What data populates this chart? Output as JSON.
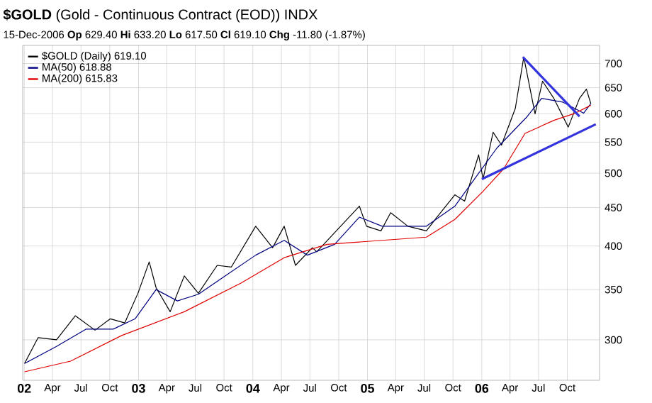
{
  "chart_data": {
    "type": "line",
    "title": "**$GOLD** (Gold - Continuous Contract (EOD)) INDX",
    "subtitle": "15-Dec-2006   **Op** 629.40  **Hi** 633.20  **Lo** 617.50  **Cl** 619.10  **Chg** -11.80 (-1.87%)",
    "series": [
      {
        "name": "$GOLD (Daily) 619.10",
        "color": "#000000",
        "x": [
          "2002-01-02",
          "2002-02-14",
          "2002-04-14",
          "2002-06-13",
          "2002-08-15",
          "2002-10-03",
          "2002-11-18",
          "2002-12-30",
          "2003-02-04",
          "2003-02-26",
          "2003-04-12",
          "2003-05-27",
          "2003-07-11",
          "2003-09-09",
          "2003-10-24",
          "2004-01-10",
          "2004-03-04",
          "2004-04-10",
          "2004-05-16",
          "2004-07-09",
          "2004-07-23",
          "2004-12-06",
          "2004-12-29",
          "2005-02-13",
          "2005-03-16",
          "2005-05-10",
          "2005-07-08",
          "2005-08-13",
          "2005-10-07",
          "2005-11-07",
          "2005-12-22",
          "2006-01-05",
          "2006-02-06",
          "2006-03-05",
          "2006-04-18",
          "2006-05-15",
          "2006-06-20",
          "2006-07-14",
          "2006-08-19",
          "2006-10-04",
          "2006-11-09",
          "2006-12-01",
          "2006-12-15"
        ],
        "values": [
          279,
          302,
          300,
          323,
          309,
          320,
          316,
          346,
          381,
          352,
          327,
          365,
          346,
          377,
          375,
          425,
          398,
          425,
          377,
          398,
          393,
          452,
          425,
          419,
          443,
          425,
          419,
          438,
          468,
          459,
          529,
          491,
          567,
          545,
          610,
          714,
          600,
          663,
          629,
          576,
          629,
          647,
          619.1
        ]
      },
      {
        "name": "MA(50) 618.88",
        "color": "#000080",
        "x": [
          "2002-01-02",
          "2002-04-14",
          "2002-07-17",
          "2002-10-12",
          "2002-12-21",
          "2003-02-26",
          "2003-05-05",
          "2003-07-11",
          "2003-10-05",
          "2004-01-10",
          "2004-04-10",
          "2004-06-23",
          "2004-09-18",
          "2004-12-06",
          "2005-02-17",
          "2005-07-08",
          "2005-10-07",
          "2005-12-13",
          "2006-02-18",
          "2006-05-26",
          "2006-07-11",
          "2006-09-16",
          "2006-11-22",
          "2006-12-15"
        ],
        "values": [
          279,
          294,
          310,
          310,
          320,
          350,
          338,
          345,
          365,
          389,
          407,
          389,
          402,
          437,
          425,
          425,
          452,
          494,
          540,
          595,
          629,
          622,
          601,
          618.88
        ]
      },
      {
        "name": "MA(200) 615.83",
        "color": "#e00000",
        "x": [
          "2002-01-02",
          "2002-05-29",
          "2002-11-08",
          "2003-05-27",
          "2003-11-24",
          "2004-04-10",
          "2004-08-25",
          "2005-02-17",
          "2005-07-08",
          "2005-10-07",
          "2006-01-05",
          "2006-03-12",
          "2006-05-19",
          "2006-08-19",
          "2006-10-26",
          "2006-12-15"
        ],
        "values": [
          272,
          281,
          304,
          327,
          357,
          386,
          402,
          407,
          411,
          434,
          473,
          507,
          565,
          588,
          601,
          615.83
        ]
      },
      {
        "color": "#3333dd",
        "x": [
          "2006-05-12",
          "2006-11-09"
        ],
        "values": [
          714,
          595
        ]
      },
      {
        "color": "#3333dd",
        "x": [
          "2006-01-01",
          "2006-12-31"
        ],
        "values": [
          491,
          581
        ]
      }
    ],
    "xlim": [
      "2001-12-27",
      "2007-01-12"
    ],
    "xticks": [
      {
        "value": "2002-01-01",
        "label": "02"
      },
      {
        "value": "2002-04-01",
        "label": "Apr"
      },
      {
        "value": "2002-07-01",
        "label": "Jul"
      },
      {
        "value": "2002-10-01",
        "label": "Oct"
      },
      {
        "value": "2003-01-01",
        "label": "03"
      },
      {
        "value": "2003-04-01",
        "label": "Apr"
      },
      {
        "value": "2003-07-01",
        "label": "Jul"
      },
      {
        "value": "2003-10-01",
        "label": "Oct"
      },
      {
        "value": "2004-01-01",
        "label": "04"
      },
      {
        "value": "2004-04-01",
        "label": "Apr"
      },
      {
        "value": "2004-07-01",
        "label": "Jul"
      },
      {
        "value": "2004-10-01",
        "label": "Oct"
      },
      {
        "value": "2005-01-01",
        "label": "05"
      },
      {
        "value": "2005-04-01",
        "label": "Apr"
      },
      {
        "value": "2005-07-01",
        "label": "Jul"
      },
      {
        "value": "2005-10-01",
        "label": "Oct"
      },
      {
        "value": "2006-01-01",
        "label": "06"
      },
      {
        "value": "2006-04-01",
        "label": "Apr"
      },
      {
        "value": "2006-07-01",
        "label": "Jul"
      },
      {
        "value": "2006-10-01",
        "label": "Oct"
      }
    ],
    "ylim": [
      265,
      740
    ],
    "yticks": [
      300,
      350,
      400,
      450,
      500,
      550,
      600,
      650,
      700
    ],
    "log": "y",
    "grid": true,
    "legend": "top left"
  }
}
